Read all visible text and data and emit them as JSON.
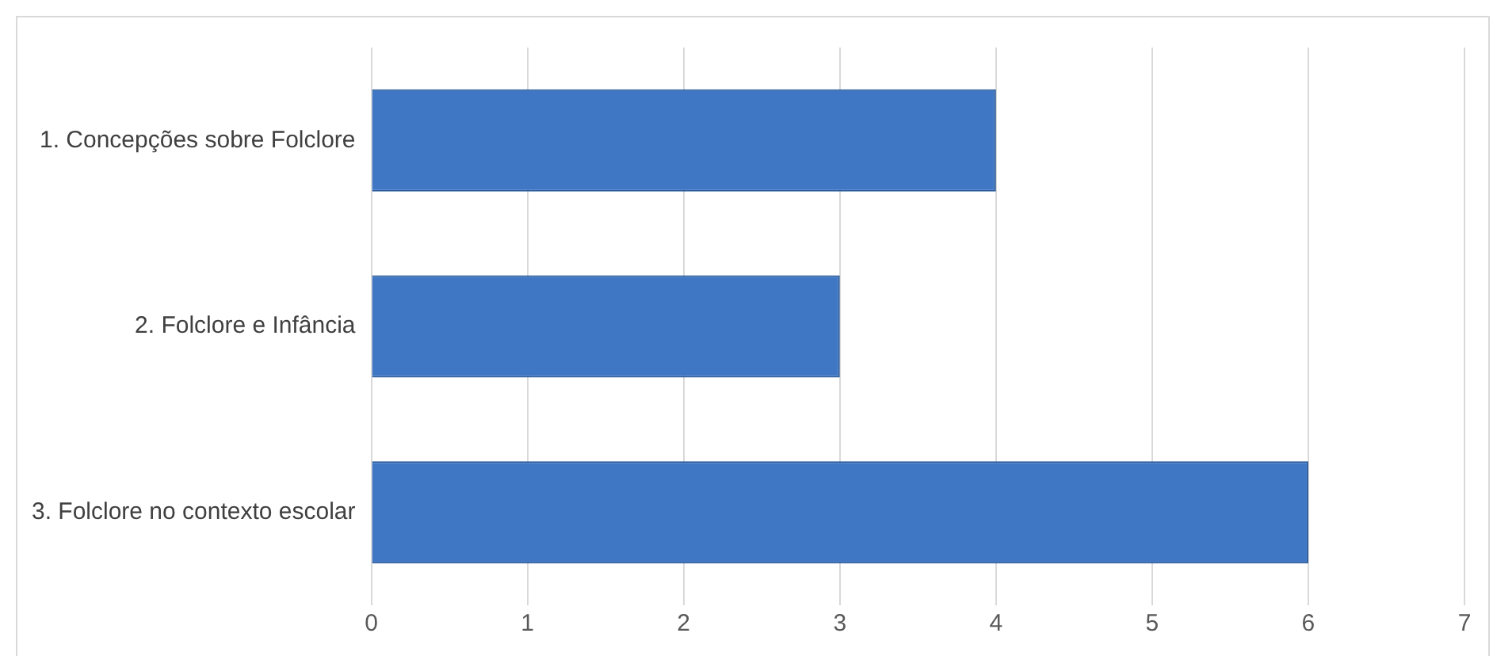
{
  "chart_data": {
    "type": "bar",
    "orientation": "horizontal",
    "categories": [
      "1. Concepções sobre Folclore",
      "2. Folclore e Infância",
      "3. Folclore no contexto escolar"
    ],
    "values": [
      4,
      3,
      6
    ],
    "color": "#3f77c4",
    "xlim": [
      0,
      7
    ],
    "xticks": [
      0,
      1,
      2,
      3,
      4,
      5,
      6,
      7
    ],
    "grid": "x",
    "legend": false
  }
}
